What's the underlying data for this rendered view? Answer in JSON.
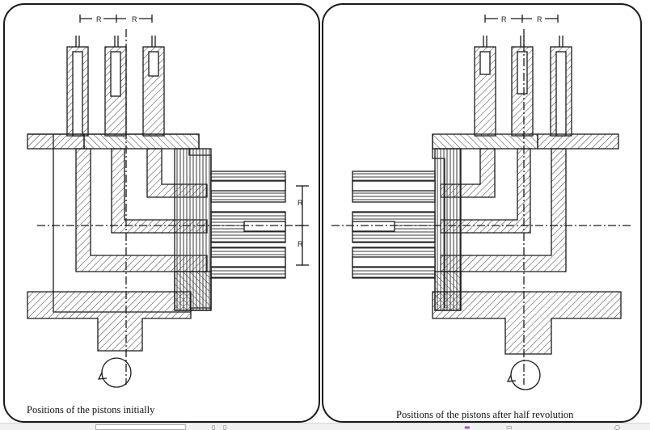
{
  "figure": {
    "left_caption": "Positions of the pistons initially",
    "right_caption": "Positions of the pistons after half revolution",
    "dimension_label": "R"
  },
  "colors": {
    "line": "#1a1a1a",
    "hatch": "#3a3a3a",
    "accent": "#9b59b6"
  },
  "toolbar": {
    "icons": [
      "page-icon",
      "page-icon",
      "highlight-icon",
      "text-icon",
      "help-icon"
    ]
  }
}
